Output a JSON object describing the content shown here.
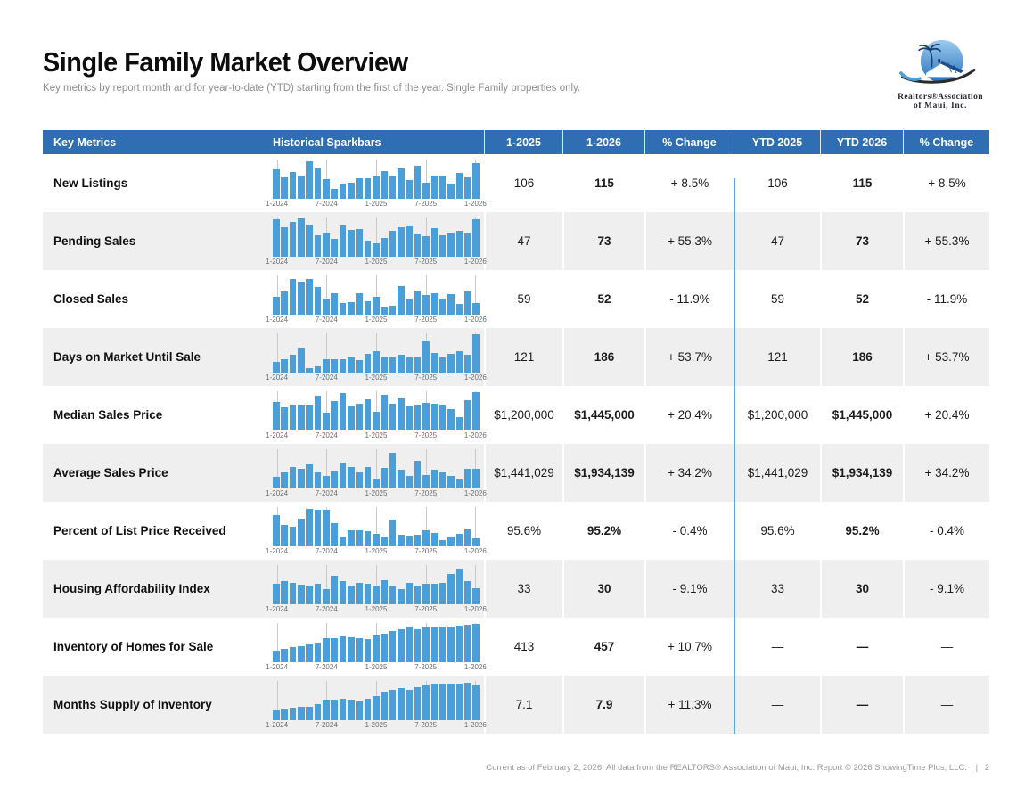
{
  "page": {
    "title": "Single Family Market Overview",
    "subtitle": "Key metrics by report month and for year-to-date (YTD) starting from the first of the year. Single Family properties only.",
    "footer_text": "Current as of February 2, 2026. All data from the REALTORS® Association of Maui, Inc. Report © 2026 ShowingTime Plus, LLC.",
    "footer_divider": "|",
    "page_number": "2"
  },
  "logo": {
    "line1": "Realtors®Association",
    "line2": "of Maui, Inc."
  },
  "colors": {
    "header_bg": "#2f6eb2",
    "bar_blue": "#4b9fd9",
    "divider_blue": "#5fa4dc",
    "alt_row_bg": "#efefef",
    "tick_gray": "#c9c9c9"
  },
  "table": {
    "columns": [
      "Key Metrics",
      "Historical Sparkbars",
      "1-2025",
      "1-2026",
      "% Change",
      "YTD 2025",
      "YTD 2026",
      "% Change"
    ],
    "spark_axis_labels": [
      "1-2024",
      "7-2024",
      "1-2025",
      "7-2025",
      "1-2026"
    ],
    "rows": [
      {
        "metric": "New Listings",
        "m2025": "106",
        "m2026": "115",
        "m_change": "+ 8.5%",
        "ytd2025": "106",
        "ytd2026": "115",
        "ytd_change": "+ 8.5%",
        "spark": [
          75,
          55,
          68,
          58,
          95,
          78,
          50,
          25,
          38,
          42,
          52,
          52,
          57,
          70,
          57,
          77,
          48,
          83,
          42,
          60,
          58,
          38,
          67,
          55,
          90
        ]
      },
      {
        "metric": "Pending Sales",
        "m2025": "47",
        "m2026": "73",
        "m_change": "+ 55.3%",
        "ytd2025": "47",
        "ytd2026": "73",
        "ytd_change": "+ 55.3%",
        "spark": [
          95,
          75,
          88,
          98,
          82,
          55,
          62,
          45,
          80,
          68,
          70,
          40,
          35,
          48,
          65,
          75,
          78,
          60,
          52,
          72,
          55,
          62,
          67,
          62,
          95
        ]
      },
      {
        "metric": "Closed Sales",
        "m2025": "59",
        "m2026": "52",
        "m_change": "- 11.9%",
        "ytd2025": "59",
        "ytd2026": "52",
        "ytd_change": "- 11.9%",
        "spark": [
          45,
          58,
          92,
          85,
          90,
          70,
          42,
          55,
          30,
          32,
          55,
          35,
          45,
          18,
          22,
          72,
          42,
          62,
          50,
          55,
          42,
          52,
          28,
          58,
          30
        ]
      },
      {
        "metric": "Days on Market Until Sale",
        "m2025": "121",
        "m2026": "186",
        "m_change": "+ 53.7%",
        "ytd2025": "121",
        "ytd2026": "186",
        "ytd_change": "+ 53.7%",
        "spark": [
          28,
          35,
          45,
          62,
          12,
          15,
          33,
          35,
          35,
          38,
          32,
          48,
          55,
          42,
          38,
          45,
          38,
          42,
          80,
          50,
          38,
          48,
          55,
          45,
          98
        ]
      },
      {
        "metric": "Median Sales Price",
        "m2025": "$1,200,000",
        "m2026": "$1,445,000",
        "m_change": "+ 20.4%",
        "ytd2025": "$1,200,000",
        "ytd2026": "$1,445,000",
        "ytd_change": "+ 20.4%",
        "spark": [
          72,
          58,
          65,
          65,
          65,
          88,
          45,
          75,
          95,
          62,
          68,
          80,
          48,
          90,
          68,
          82,
          62,
          65,
          70,
          68,
          65,
          55,
          35,
          78,
          98
        ]
      },
      {
        "metric": "Average Sales Price",
        "m2025": "$1,441,029",
        "m2026": "$1,934,139",
        "m_change": "+ 34.2%",
        "ytd2025": "$1,441,029",
        "ytd2026": "$1,934,139",
        "ytd_change": "+ 34.2%",
        "spark": [
          30,
          42,
          55,
          50,
          62,
          42,
          32,
          45,
          65,
          55,
          40,
          55,
          25,
          52,
          92,
          48,
          32,
          70,
          35,
          48,
          42,
          32,
          22,
          50,
          50
        ]
      },
      {
        "metric": "Percent of List Price Received",
        "m2025": "95.6%",
        "m2026": "95.2%",
        "m_change": "- 0.4%",
        "ytd2025": "95.6%",
        "ytd2026": "95.2%",
        "ytd_change": "- 0.4%",
        "spark": [
          80,
          55,
          50,
          70,
          95,
          93,
          93,
          58,
          25,
          42,
          40,
          38,
          32,
          25,
          68,
          30,
          28,
          30,
          42,
          35,
          15,
          25,
          32,
          45,
          20
        ]
      },
      {
        "metric": "Housing Affordability Index",
        "m2025": "33",
        "m2026": "30",
        "m_change": "- 9.1%",
        "ytd2025": "33",
        "ytd2026": "30",
        "ytd_change": "- 9.1%",
        "spark": [
          52,
          58,
          55,
          50,
          48,
          52,
          38,
          72,
          58,
          48,
          55,
          52,
          48,
          62,
          45,
          38,
          55,
          48,
          52,
          52,
          55,
          78,
          92,
          58,
          42
        ]
      },
      {
        "metric": "Inventory of Homes for Sale",
        "m2025": "413",
        "m2026": "457",
        "m_change": "+ 10.7%",
        "ytd2025": "—",
        "ytd2026": "—",
        "ytd_change": "—",
        "spark": [
          30,
          33,
          38,
          42,
          45,
          48,
          62,
          62,
          65,
          63,
          62,
          60,
          68,
          72,
          80,
          85,
          90,
          85,
          88,
          88,
          90,
          92,
          93,
          95,
          97
        ]
      },
      {
        "metric": "Months Supply of Inventory",
        "m2025": "7.1",
        "m2026": "7.9",
        "m_change": "+ 11.3%",
        "ytd2025": "—",
        "ytd2026": "—",
        "ytd_change": "—",
        "spark": [
          25,
          28,
          32,
          33,
          33,
          40,
          52,
          52,
          55,
          52,
          48,
          55,
          62,
          72,
          78,
          82,
          78,
          85,
          88,
          90,
          90,
          90,
          90,
          95,
          88
        ]
      }
    ]
  }
}
